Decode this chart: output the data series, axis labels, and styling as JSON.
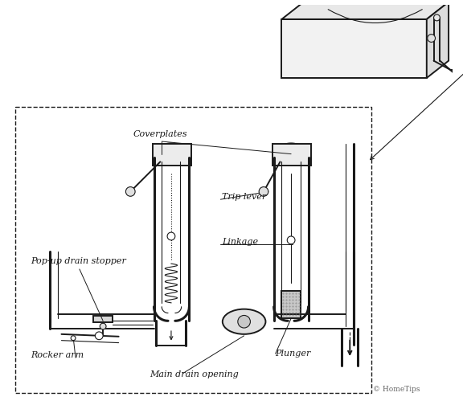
{
  "copyright": "© HomeTips",
  "background_color": "#ffffff",
  "line_color": "#1a1a1a",
  "fig_width": 5.76,
  "fig_height": 5.09,
  "dpi": 100,
  "labels": {
    "coverplates": "Coverplates",
    "trip_lever": "Trip lever",
    "linkage": "Linkage",
    "popup_drain": "Pop-up drain stopper",
    "rocker_arm": "Rocker arm",
    "main_drain": "Main drain opening",
    "plunger": "Plunger"
  }
}
